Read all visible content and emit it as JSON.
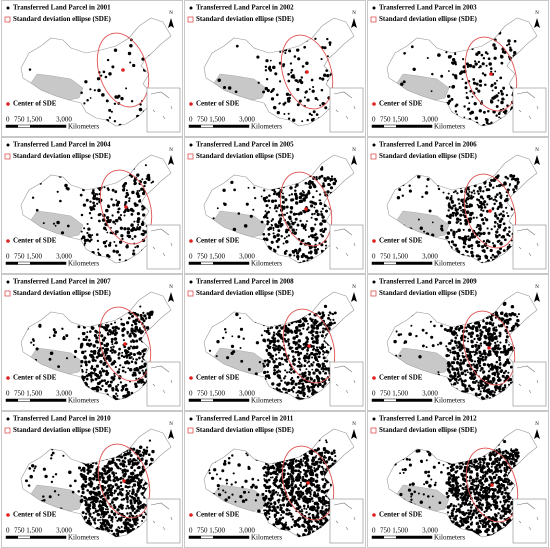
{
  "panels": [
    {
      "title": "Transferred Land Parcel in 2001"
    },
    {
      "title": "Transferred Land Parcel in 2002"
    },
    {
      "title": "Transferred Land Parcel in 2003"
    },
    {
      "title": "Transferred Land Parcel in 2004"
    },
    {
      "title": "Transferred Land Parcel in 2005"
    },
    {
      "title": "Transferred Land Parcel in 2006"
    },
    {
      "title": "Transferred Land Parcel in 2007"
    },
    {
      "title": "Transferred Land Parcel in 2008"
    },
    {
      "title": "Transferred Land Parcel in 2009"
    },
    {
      "title": "Transferred Land Parcel in 2010"
    },
    {
      "title": "Transferred Land Parcel in 2011"
    },
    {
      "title": "Transferred Land Parcel in 2012"
    }
  ],
  "legend": {
    "sde": "Standard deviation ellipse (SDE)",
    "center": "Center of SDE",
    "scale_labels": [
      "0",
      "750 1,500",
      "3,000"
    ],
    "unit": "Kilometers",
    "north": "N"
  }
}
